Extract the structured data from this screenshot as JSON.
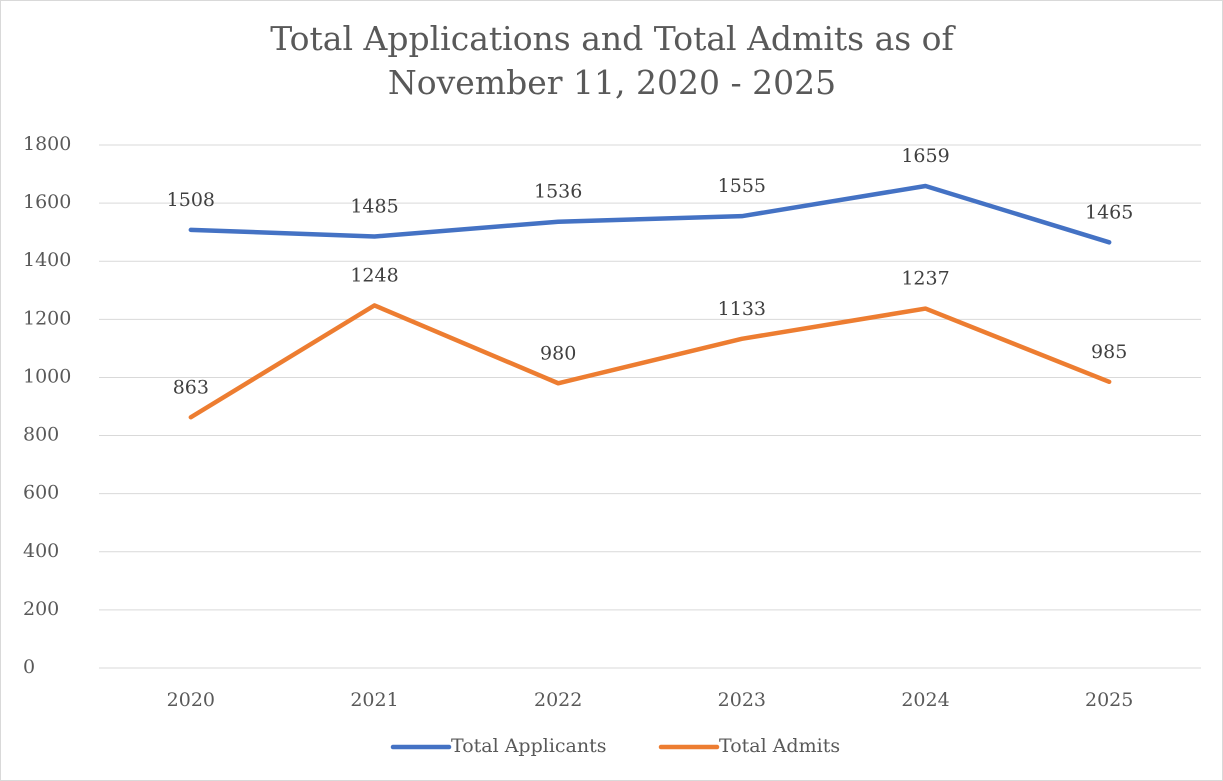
{
  "chart_data": {
    "type": "line",
    "title": "Total Applications and Total Admits as of November 11, 2020 - 2025",
    "categories": [
      "2020",
      "2021",
      "2022",
      "2023",
      "2024",
      "2025"
    ],
    "series": [
      {
        "name": "Total Applicants",
        "color": "#4472c4",
        "values": [
          1508,
          1485,
          1536,
          1555,
          1659,
          1465
        ]
      },
      {
        "name": "Total Admits",
        "color": "#ed7d31",
        "values": [
          863,
          1248,
          980,
          1133,
          1237,
          985
        ]
      }
    ],
    "ylim": [
      0,
      1800
    ],
    "yticks": [
      0,
      200,
      400,
      600,
      800,
      1000,
      1200,
      1400,
      1600,
      1800
    ],
    "grid": true,
    "legend": "bottom"
  }
}
